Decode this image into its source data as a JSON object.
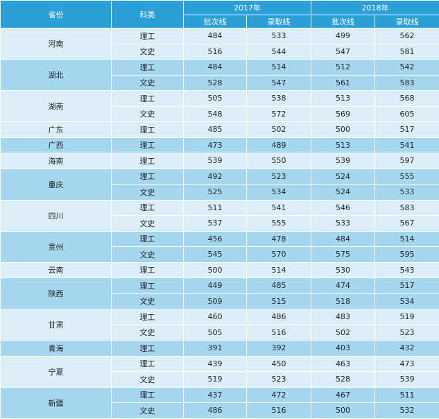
{
  "table": {
    "header": {
      "province": "省份",
      "subject": "科类",
      "years": [
        {
          "year": "2017年",
          "cols": [
            "批次线",
            "录取线"
          ]
        },
        {
          "year": "2018年",
          "cols": [
            "批次线",
            "录取线"
          ]
        }
      ]
    },
    "groups": [
      {
        "province": "河南",
        "rows": [
          {
            "subject": "理工",
            "values": [
              484,
              533,
              499,
              562
            ]
          },
          {
            "subject": "文史",
            "values": [
              516,
              544,
              547,
              581
            ]
          }
        ]
      },
      {
        "province": "湖北",
        "rows": [
          {
            "subject": "理工",
            "values": [
              484,
              514,
              512,
              542
            ]
          },
          {
            "subject": "文史",
            "values": [
              528,
              547,
              561,
              583
            ]
          }
        ]
      },
      {
        "province": "湖南",
        "rows": [
          {
            "subject": "理工",
            "values": [
              505,
              538,
              513,
              568
            ]
          },
          {
            "subject": "文史",
            "values": [
              548,
              572,
              569,
              605
            ]
          }
        ]
      },
      {
        "province": "广东",
        "rows": [
          {
            "subject": "理工",
            "values": [
              485,
              502,
              500,
              517
            ]
          }
        ]
      },
      {
        "province": "广西",
        "rows": [
          {
            "subject": "理工",
            "values": [
              473,
              489,
              513,
              541
            ]
          }
        ]
      },
      {
        "province": "海南",
        "rows": [
          {
            "subject": "理工",
            "values": [
              539,
              550,
              539,
              597
            ]
          }
        ]
      },
      {
        "province": "重庆",
        "rows": [
          {
            "subject": "理工",
            "values": [
              492,
              523,
              524,
              555
            ]
          },
          {
            "subject": "文史",
            "values": [
              525,
              534,
              524,
              533
            ]
          }
        ]
      },
      {
        "province": "四川",
        "rows": [
          {
            "subject": "理工",
            "values": [
              511,
              541,
              546,
              583
            ]
          },
          {
            "subject": "文史",
            "values": [
              537,
              555,
              533,
              567
            ]
          }
        ]
      },
      {
        "province": "贵州",
        "rows": [
          {
            "subject": "理工",
            "values": [
              456,
              478,
              484,
              514
            ]
          },
          {
            "subject": "文史",
            "values": [
              545,
              570,
              575,
              595
            ]
          }
        ]
      },
      {
        "province": "云南",
        "rows": [
          {
            "subject": "理工",
            "values": [
              500,
              514,
              530,
              543
            ]
          }
        ]
      },
      {
        "province": "陕西",
        "rows": [
          {
            "subject": "理工",
            "values": [
              449,
              485,
              474,
              517
            ]
          },
          {
            "subject": "文史",
            "values": [
              509,
              515,
              518,
              534
            ]
          }
        ]
      },
      {
        "province": "甘肃",
        "rows": [
          {
            "subject": "理工",
            "values": [
              460,
              486,
              483,
              519
            ]
          },
          {
            "subject": "文史",
            "values": [
              505,
              516,
              502,
              523
            ]
          }
        ]
      },
      {
        "province": "青海",
        "rows": [
          {
            "subject": "理工",
            "values": [
              391,
              392,
              403,
              432
            ]
          }
        ]
      },
      {
        "province": "宁夏",
        "rows": [
          {
            "subject": "理工",
            "values": [
              439,
              450,
              463,
              473
            ]
          },
          {
            "subject": "文史",
            "values": [
              519,
              523,
              528,
              539
            ]
          }
        ]
      },
      {
        "province": "新疆",
        "rows": [
          {
            "subject": "理工",
            "values": [
              437,
              472,
              467,
              511
            ]
          },
          {
            "subject": "文史",
            "values": [
              486,
              516,
              500,
              532
            ]
          }
        ]
      }
    ]
  }
}
